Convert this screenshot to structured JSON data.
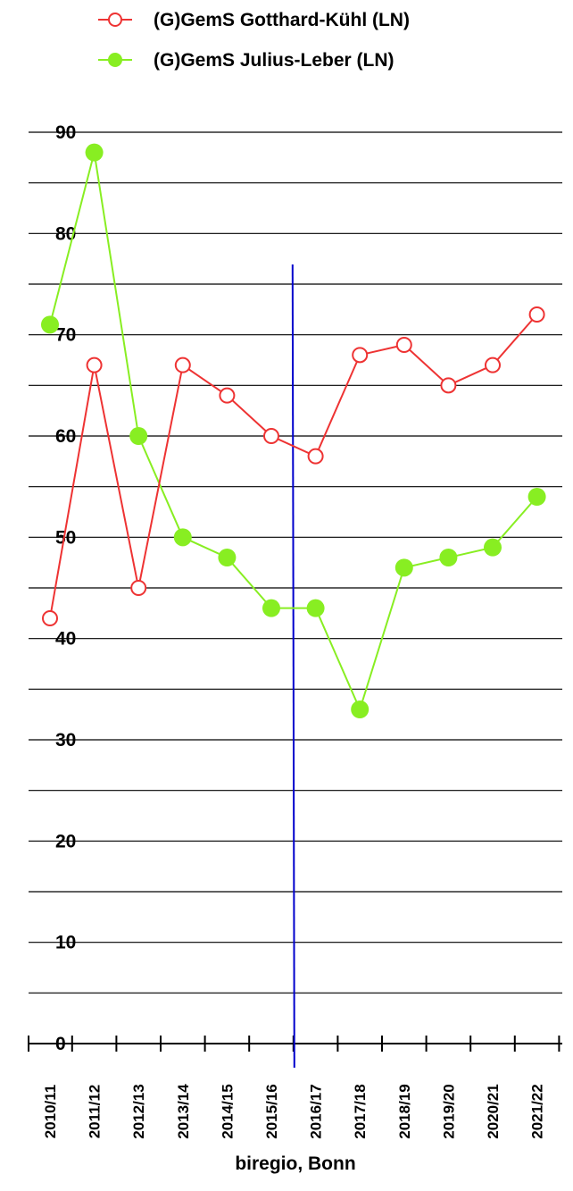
{
  "chart_data": {
    "type": "line",
    "categories": [
      "2010/11",
      "2011/12",
      "2012/13",
      "2013/14",
      "2014/15",
      "2015/16",
      "2016/17",
      "2017/18",
      "2018/19",
      "2019/20",
      "2020/21",
      "2021/22"
    ],
    "series": [
      {
        "name": "(G)GemS Gotthard-Kühl (LN)",
        "values": [
          42,
          67,
          45,
          67,
          64,
          60,
          58,
          68,
          69,
          65,
          67,
          72
        ],
        "color": "#ee3333",
        "marker": "hollow-circle"
      },
      {
        "name": "(G)GemS Julius-Leber (LN)",
        "values": [
          71,
          88,
          60,
          50,
          48,
          43,
          43,
          33,
          47,
          48,
          49,
          54
        ],
        "color": "#88ee22",
        "marker": "filled-circle"
      }
    ],
    "ylim": [
      0,
      90
    ],
    "yticks": [
      "0",
      "10",
      "20",
      "30",
      "40",
      "50",
      "60",
      "70",
      "80",
      "90"
    ],
    "grid": true,
    "legend_position": "top",
    "marker_line": {
      "between": [
        "2015/16",
        "2016/17"
      ],
      "color": "#0000cc"
    },
    "xlabel": "biregio, Bonn",
    "ylabel": ""
  }
}
